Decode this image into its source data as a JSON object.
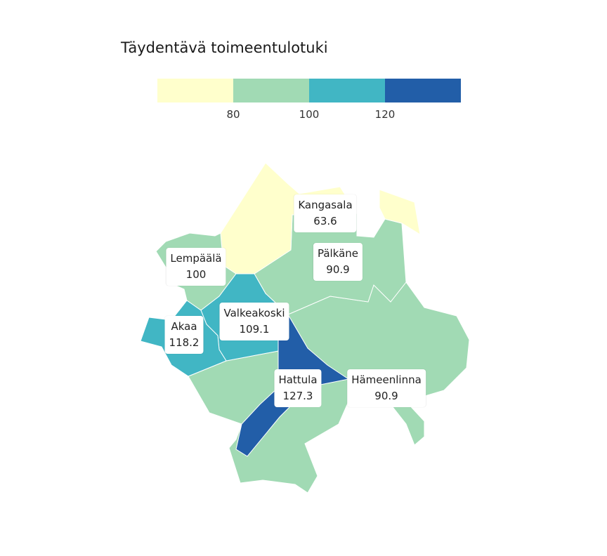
{
  "title": "Täydentävä toimeentulotuki",
  "legend": {
    "bins": [
      {
        "color": "#ffffcc"
      },
      {
        "color": "#a1dab4"
      },
      {
        "color": "#41b6c4"
      },
      {
        "color": "#225ea8"
      }
    ],
    "ticks": [
      "80",
      "100",
      "120"
    ]
  },
  "regions": [
    {
      "name": "Kangasala",
      "value": "63.6",
      "color": "#ffffcc"
    },
    {
      "name": "Pälkäne",
      "value": "90.9",
      "color": "#a1dab4"
    },
    {
      "name": "Lempäälä",
      "value": "100",
      "color": "#a1dab4"
    },
    {
      "name": "Valkeakoski",
      "value": "109.1",
      "color": "#41b6c4"
    },
    {
      "name": "Akaa",
      "value": "118.2",
      "color": "#41b6c4"
    },
    {
      "name": "Hattula",
      "value": "127.3",
      "color": "#225ea8"
    },
    {
      "name": "Hämeenlinna",
      "value": "90.9",
      "color": "#a1dab4"
    }
  ]
}
